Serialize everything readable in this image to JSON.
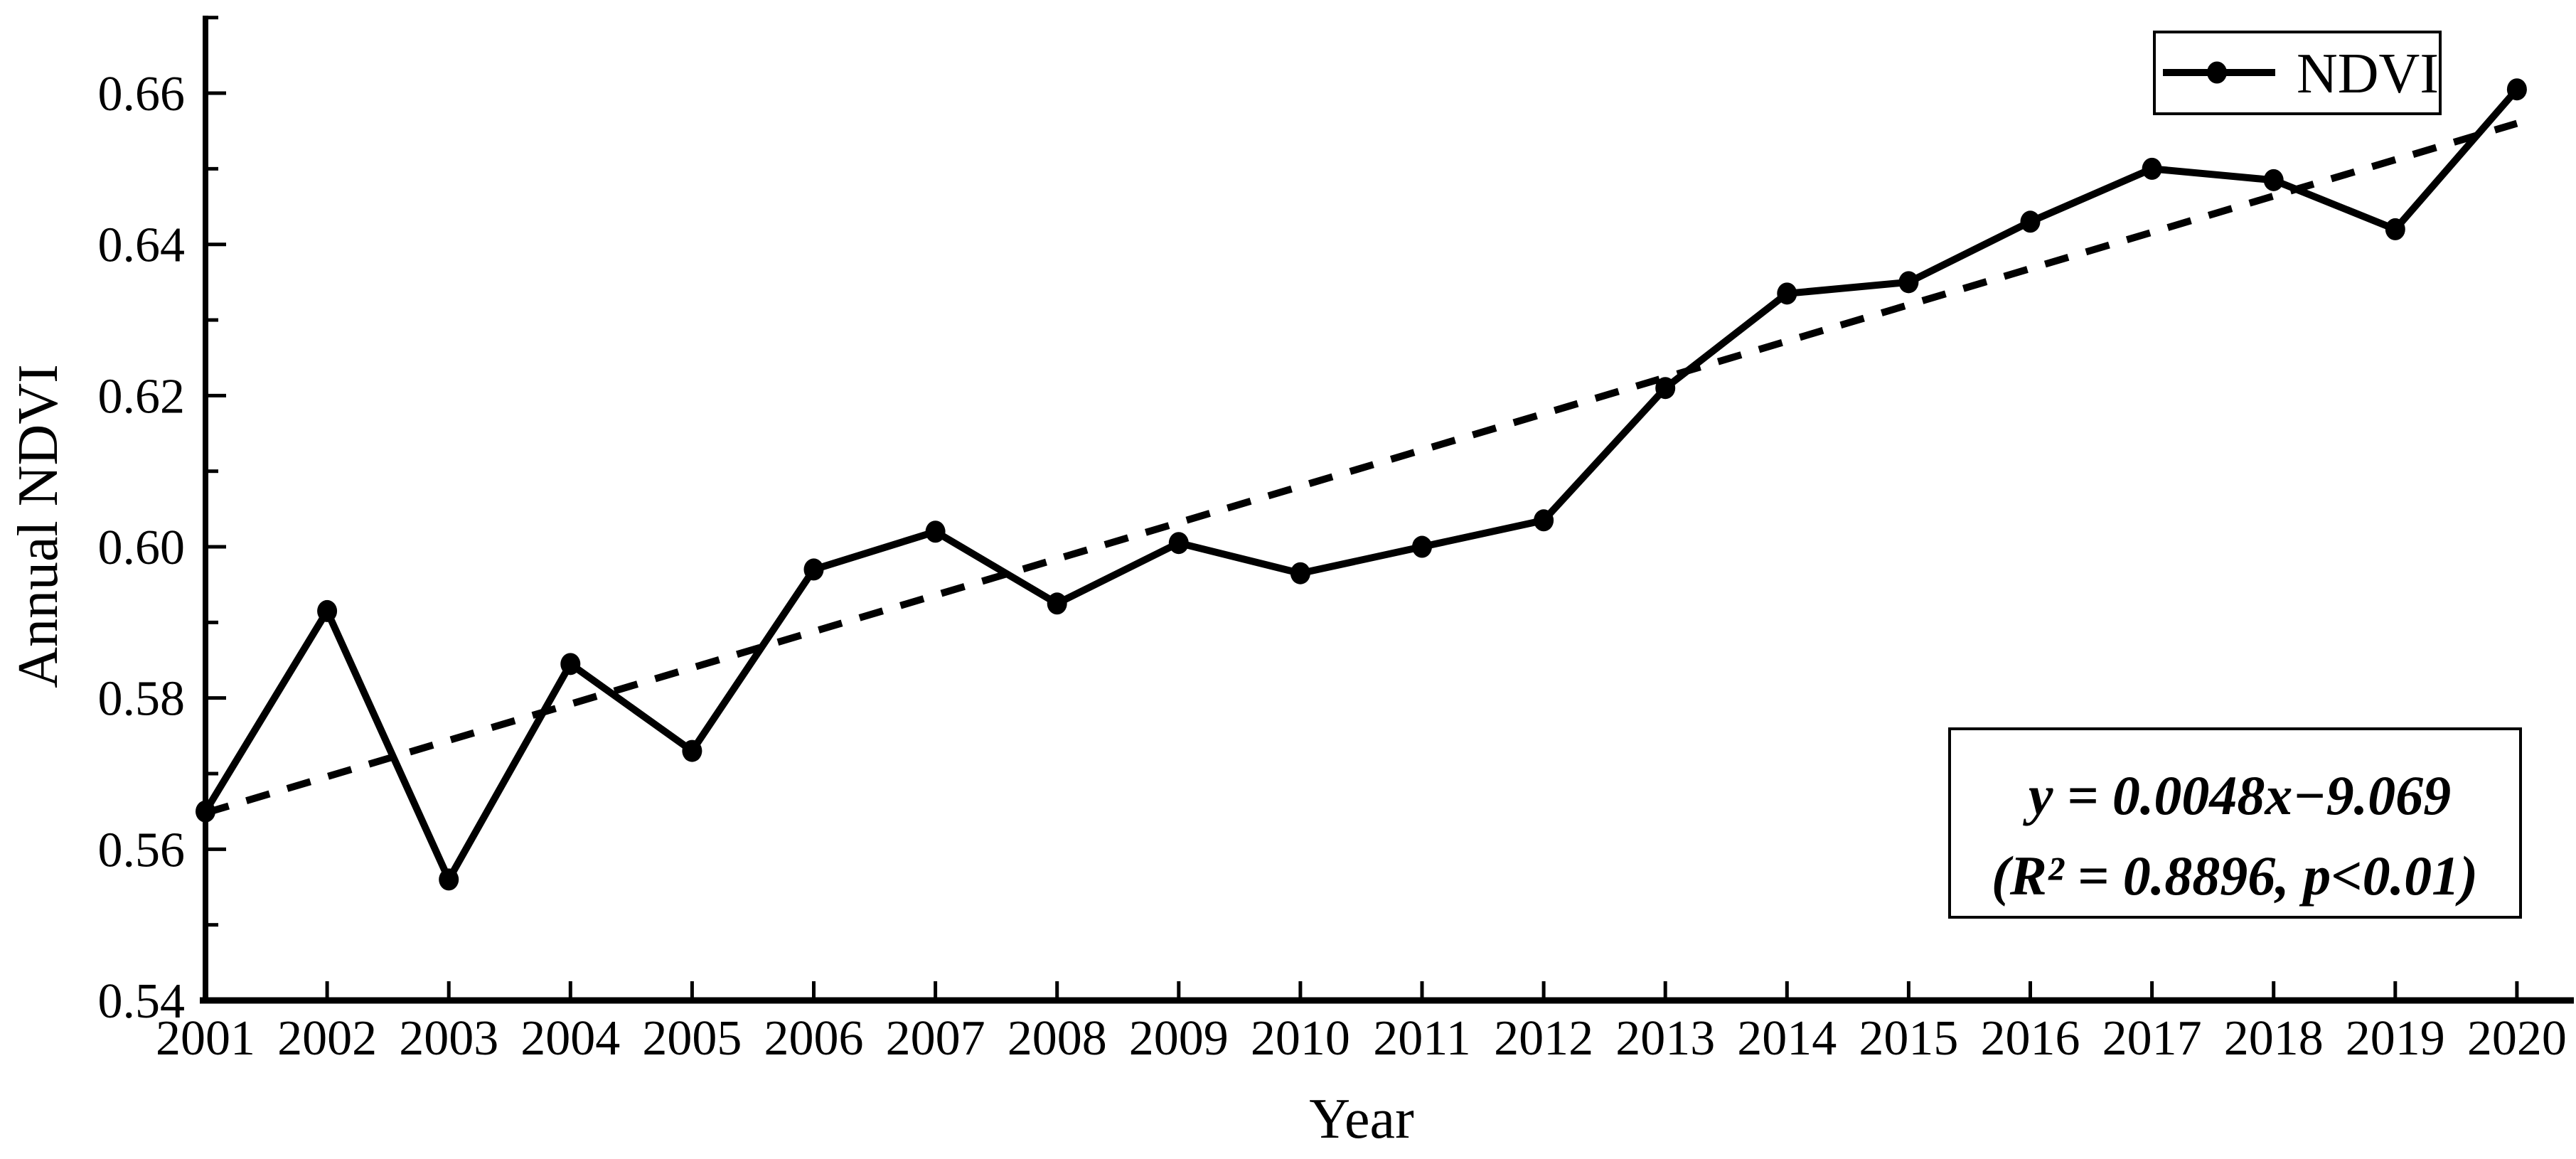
{
  "figure": {
    "background_color": "#ffffff",
    "ink_color": "#000000"
  },
  "y_axis": {
    "title": "Annual  NDVI",
    "tick_values": [
      0.54,
      0.56,
      0.58,
      0.6,
      0.62,
      0.64,
      0.66
    ],
    "tick_labels": [
      "0.54",
      "0.56",
      "0.58",
      "0.60",
      "0.62",
      "0.64",
      "0.66"
    ],
    "minor_tick_values": [
      0.55,
      0.57,
      0.59,
      0.61,
      0.63,
      0.65,
      0.67
    ],
    "range": [
      0.54,
      0.672
    ]
  },
  "x_axis": {
    "title": "Year",
    "tick_labels": [
      "2001",
      "2002",
      "2003",
      "2004",
      "2005",
      "2006",
      "2007",
      "2008",
      "2009",
      "2010",
      "2011",
      "2012",
      "2013",
      "2014",
      "2015",
      "2016",
      "2017",
      "2018",
      "2019",
      "2020"
    ],
    "range": [
      2001,
      2020
    ]
  },
  "legend": {
    "label": "NDVI",
    "marker": "filled-circle-on-line",
    "position": "top-right"
  },
  "annotation": {
    "line1": "y = 0.0048x−9.069",
    "line2": "(R² = 0.8896, p<0.01)"
  },
  "chart_data": {
    "type": "line",
    "title": "",
    "xlabel": "Year",
    "ylabel": "Annual NDVI",
    "x": [
      2001,
      2002,
      2003,
      2004,
      2005,
      2006,
      2007,
      2008,
      2009,
      2010,
      2011,
      2012,
      2013,
      2014,
      2015,
      2016,
      2017,
      2018,
      2019,
      2020
    ],
    "series": [
      {
        "name": "NDVI",
        "values": [
          0.565,
          0.5915,
          0.556,
          0.5845,
          0.573,
          0.597,
          0.602,
          0.5925,
          0.6005,
          0.5965,
          0.6,
          0.6035,
          0.621,
          0.6335,
          0.635,
          0.643,
          0.65,
          0.6485,
          0.642,
          0.6605
        ],
        "line_style": "solid",
        "marker": "circle",
        "color": "#000000"
      }
    ],
    "trendline": {
      "equation": "y = 0.0048x−9.069",
      "r_squared": 0.8896,
      "significance": "p<0.01",
      "slope_per_year": 0.0048,
      "start": {
        "x": 2001,
        "y": 0.5648
      },
      "end": {
        "x": 2020,
        "y": 0.656
      },
      "line_style": "dashed",
      "color": "#000000"
    },
    "ylim": [
      0.54,
      0.66
    ],
    "grid": false,
    "legend_position": "top-right"
  }
}
